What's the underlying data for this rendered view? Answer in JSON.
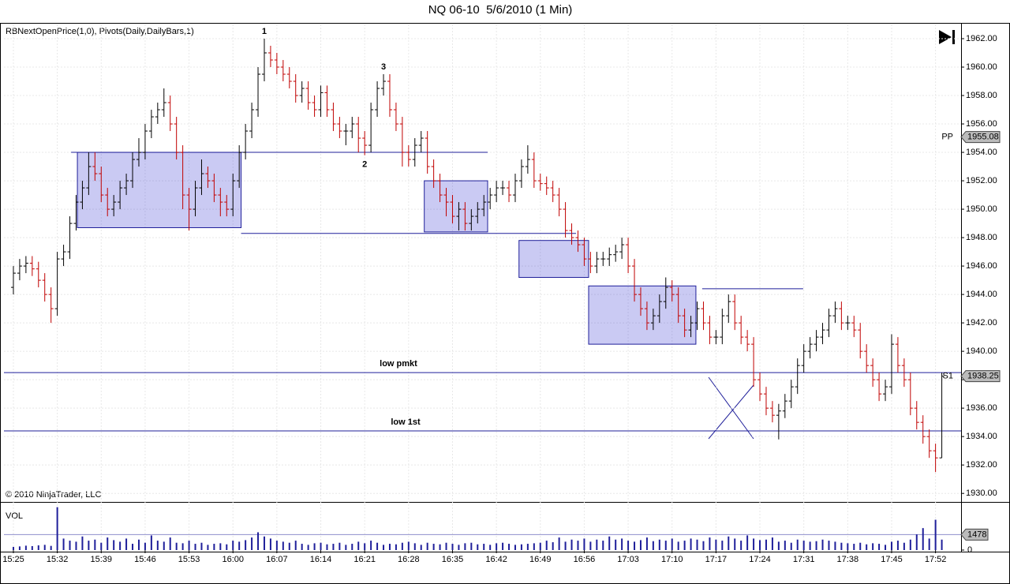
{
  "chart_data": {
    "type": "ohlc",
    "title": "NQ 06-10  5/6/2010 (1 Min)",
    "indicator_label": "RBNextOpenPrice(1,0), Pivots(Daily,DailyBars,1)",
    "copyright": "© 2010 NinjaTrader, LLC",
    "volume_label": "VOL",
    "up_color": "#000000",
    "down_color": "#c00000",
    "volume_color": "#1f1f9a",
    "zone_color": "#2a2ad0",
    "grid": true,
    "categories": [
      "15:25",
      null,
      null,
      null,
      null,
      null,
      null,
      "15:32",
      null,
      null,
      null,
      null,
      null,
      null,
      "15:39",
      null,
      null,
      null,
      null,
      null,
      null,
      "15:46",
      null,
      null,
      null,
      null,
      null,
      null,
      "15:53",
      null,
      null,
      null,
      null,
      null,
      null,
      "16:00",
      null,
      null,
      null,
      null,
      null,
      null,
      "16:07",
      null,
      null,
      null,
      null,
      null,
      null,
      "16:14",
      null,
      null,
      null,
      null,
      null,
      null,
      "16:21",
      null,
      null,
      null,
      null,
      null,
      null,
      "16:28",
      null,
      null,
      null,
      null,
      null,
      null,
      "16:35",
      null,
      null,
      null,
      null,
      null,
      null,
      "16:42",
      null,
      null,
      null,
      null,
      null,
      null,
      "16:49",
      null,
      null,
      null,
      null,
      null,
      null,
      "16:56",
      null,
      null,
      null,
      null,
      null,
      null,
      "17:03",
      null,
      null,
      null,
      null,
      null,
      null,
      "17:10",
      null,
      null,
      null,
      null,
      null,
      null,
      "17:17",
      null,
      null,
      null,
      null,
      null,
      null,
      "17:24",
      null,
      null,
      null,
      null,
      null,
      null,
      "17:31",
      null,
      null,
      null,
      null,
      null,
      null,
      "17:38",
      null,
      null,
      null,
      null,
      null,
      null,
      "17:45",
      null,
      null,
      null,
      null,
      null,
      null,
      "17:52",
      null
    ],
    "bars": [
      [
        1944.5,
        1946,
        1944,
        1945.5
      ],
      [
        1945.5,
        1946.5,
        1945,
        1946
      ],
      [
        1946,
        1946.7,
        1945.5,
        1946.2
      ],
      [
        1946.2,
        1946.7,
        1945.3,
        1945.8
      ],
      [
        1945.8,
        1946.3,
        1944.5,
        1945
      ],
      [
        1945,
        1945.5,
        1943.5,
        1944
      ],
      [
        1944,
        1944.5,
        1942,
        1943
      ],
      [
        1943,
        1947,
        1942.5,
        1946.5
      ],
      [
        1946.5,
        1947.5,
        1946,
        1947
      ],
      [
        1947,
        1949.5,
        1946.5,
        1949
      ],
      [
        1949,
        1951,
        1948.5,
        1950.5
      ],
      [
        1950.5,
        1952,
        1950,
        1951.5
      ],
      [
        1951.5,
        1954,
        1951,
        1953
      ],
      [
        1953,
        1954,
        1952,
        1952.5
      ],
      [
        1952.5,
        1953,
        1950.5,
        1951
      ],
      [
        1951,
        1951.5,
        1949.5,
        1950
      ],
      [
        1950,
        1951,
        1949.5,
        1950.5
      ],
      [
        1950.5,
        1952,
        1950,
        1951.5
      ],
      [
        1951.5,
        1952.5,
        1951,
        1952
      ],
      [
        1952,
        1954,
        1951.5,
        1953.5
      ],
      [
        1953.5,
        1955,
        1953,
        1954
      ],
      [
        1954,
        1956,
        1953.5,
        1955.5
      ],
      [
        1955.5,
        1957,
        1955,
        1956.5
      ],
      [
        1956.5,
        1957.5,
        1956,
        1957
      ],
      [
        1957,
        1958.5,
        1956.5,
        1957.5
      ],
      [
        1957.5,
        1958,
        1955.5,
        1956
      ],
      [
        1956,
        1956.5,
        1953.5,
        1954
      ],
      [
        1954,
        1954.5,
        1950,
        1951
      ],
      [
        1951,
        1951.5,
        1948.5,
        1950
      ],
      [
        1950,
        1952,
        1949.5,
        1951.5
      ],
      [
        1951.5,
        1953.5,
        1951,
        1952.5
      ],
      [
        1952.5,
        1953,
        1951.5,
        1952
      ],
      [
        1952,
        1952.5,
        1950.5,
        1951
      ],
      [
        1951,
        1951.5,
        1949.5,
        1950.5
      ],
      [
        1950.5,
        1951,
        1949.5,
        1950
      ],
      [
        1950,
        1952.5,
        1949.5,
        1952
      ],
      [
        1952,
        1954.5,
        1951.5,
        1954
      ],
      [
        1954,
        1956,
        1953.5,
        1955.5
      ],
      [
        1955.5,
        1957.5,
        1955,
        1957
      ],
      [
        1957,
        1960,
        1956.5,
        1959.5
      ],
      [
        1959.5,
        1962,
        1959,
        1961
      ],
      [
        1961,
        1961.5,
        1960,
        1960.5
      ],
      [
        1960.5,
        1961,
        1959.5,
        1960
      ],
      [
        1960,
        1960.5,
        1959,
        1959.5
      ],
      [
        1959.5,
        1960,
        1958.5,
        1959
      ],
      [
        1959,
        1959.5,
        1957.5,
        1958
      ],
      [
        1958,
        1959,
        1957.5,
        1958.5
      ],
      [
        1958.5,
        1959,
        1957,
        1957.5
      ],
      [
        1957.5,
        1958,
        1956.5,
        1957
      ],
      [
        1957,
        1958.7,
        1956.5,
        1958.2
      ],
      [
        1958.2,
        1958.7,
        1956.5,
        1957
      ],
      [
        1957,
        1957.5,
        1955.5,
        1956
      ],
      [
        1956,
        1956.5,
        1955,
        1955.5
      ],
      [
        1955.5,
        1956,
        1954.5,
        1955.5
      ],
      [
        1955.5,
        1956.5,
        1955,
        1956
      ],
      [
        1956,
        1956.5,
        1954,
        1955
      ],
      [
        1955,
        1955.5,
        1953.8,
        1954.5
      ],
      [
        1954.5,
        1957.5,
        1954,
        1957
      ],
      [
        1957,
        1959,
        1956.5,
        1958.5
      ],
      [
        1958.5,
        1959.5,
        1958,
        1959
      ],
      [
        1959,
        1959.5,
        1956.5,
        1957
      ],
      [
        1957,
        1957.5,
        1955.5,
        1956
      ],
      [
        1956,
        1956.5,
        1953,
        1954
      ],
      [
        1954,
        1954.5,
        1953,
        1953.5
      ],
      [
        1953.5,
        1955,
        1953,
        1954.5
      ],
      [
        1954.5,
        1955.5,
        1954,
        1955
      ],
      [
        1955,
        1955.5,
        1952.5,
        1953
      ],
      [
        1953,
        1953.5,
        1951.5,
        1952
      ],
      [
        1952,
        1952.5,
        1950.5,
        1951
      ],
      [
        1951,
        1951.5,
        1949.5,
        1950.5
      ],
      [
        1950.5,
        1951,
        1949,
        1949.5
      ],
      [
        1949.5,
        1950.5,
        1948.5,
        1950
      ],
      [
        1950,
        1950.5,
        1948.5,
        1949
      ],
      [
        1949,
        1950,
        1948.5,
        1949.5
      ],
      [
        1949.5,
        1950.5,
        1949,
        1950
      ],
      [
        1950,
        1951,
        1949.5,
        1950.5
      ],
      [
        1950.5,
        1951.5,
        1950,
        1951
      ],
      [
        1951,
        1952,
        1950.5,
        1951.5
      ],
      [
        1951.5,
        1952,
        1951,
        1951.5
      ],
      [
        1951.5,
        1952,
        1950.5,
        1951
      ],
      [
        1951,
        1952.5,
        1950.5,
        1952
      ],
      [
        1952,
        1953.5,
        1951.5,
        1953
      ],
      [
        1953,
        1954.5,
        1952.5,
        1953.5
      ],
      [
        1953.5,
        1954,
        1951.5,
        1952
      ],
      [
        1952,
        1952.5,
        1951.3,
        1951.8
      ],
      [
        1951.8,
        1952.3,
        1951,
        1951.5
      ],
      [
        1951.5,
        1952,
        1950.5,
        1951
      ],
      [
        1951,
        1951.5,
        1949.5,
        1950
      ],
      [
        1950,
        1950.5,
        1948,
        1948.5
      ],
      [
        1948.5,
        1949,
        1947.5,
        1948
      ],
      [
        1948,
        1948.5,
        1947,
        1947.5
      ],
      [
        1947.5,
        1948,
        1946,
        1946.5
      ],
      [
        1946.5,
        1947,
        1945.5,
        1946
      ],
      [
        1946,
        1947,
        1945.5,
        1946.5
      ],
      [
        1946.5,
        1947,
        1946,
        1946.5
      ],
      [
        1946.5,
        1947.3,
        1946,
        1946.8
      ],
      [
        1946.8,
        1947.5,
        1946.3,
        1947
      ],
      [
        1947,
        1948,
        1946.5,
        1947.5
      ],
      [
        1947.5,
        1948,
        1945.5,
        1946
      ],
      [
        1946,
        1946.5,
        1943.5,
        1944
      ],
      [
        1944,
        1944.5,
        1942.5,
        1943
      ],
      [
        1943,
        1943.5,
        1941.5,
        1942
      ],
      [
        1942,
        1943,
        1941.5,
        1942.5
      ],
      [
        1942.5,
        1944,
        1942,
        1943.5
      ],
      [
        1943.5,
        1945.2,
        1943,
        1944.5
      ],
      [
        1944.5,
        1945,
        1943.5,
        1944
      ],
      [
        1944,
        1944.5,
        1942,
        1942.5
      ],
      [
        1942.5,
        1943,
        1941,
        1941.5
      ],
      [
        1941.5,
        1942.5,
        1941,
        1942
      ],
      [
        1942,
        1943.5,
        1941.5,
        1943
      ],
      [
        1943,
        1943.5,
        1941.5,
        1942
      ],
      [
        1942,
        1942.5,
        1940.5,
        1941
      ],
      [
        1941,
        1941.5,
        1940.5,
        1941
      ],
      [
        1941,
        1943,
        1940.5,
        1942.5
      ],
      [
        1942.5,
        1944,
        1942,
        1943.5
      ],
      [
        1943.5,
        1944,
        1941.5,
        1942
      ],
      [
        1942,
        1942.5,
        1940.5,
        1941
      ],
      [
        1941,
        1941.5,
        1940,
        1940.5
      ],
      [
        1940.5,
        1941,
        1937.5,
        1938
      ],
      [
        1938,
        1938.5,
        1936.5,
        1937
      ],
      [
        1937,
        1937.5,
        1935.5,
        1936
      ],
      [
        1936,
        1936.5,
        1935,
        1935.5
      ],
      [
        1935.5,
        1936.3,
        1933.8,
        1935.8
      ],
      [
        1935.8,
        1937,
        1935.3,
        1936.5
      ],
      [
        1936.5,
        1938,
        1936,
        1937.5
      ],
      [
        1937.5,
        1939.5,
        1937,
        1939
      ],
      [
        1939,
        1940.5,
        1938.5,
        1940
      ],
      [
        1940,
        1941,
        1939.5,
        1940.5
      ],
      [
        1940.5,
        1941.5,
        1940,
        1941
      ],
      [
        1941,
        1942,
        1940.5,
        1941.5
      ],
      [
        1941.5,
        1943,
        1941,
        1942.5
      ],
      [
        1942.5,
        1943.5,
        1942,
        1943
      ],
      [
        1943,
        1943.5,
        1941.5,
        1942
      ],
      [
        1942,
        1942.5,
        1941.5,
        1942
      ],
      [
        1942,
        1942.5,
        1941,
        1941.5
      ],
      [
        1941.5,
        1942,
        1939.5,
        1940
      ],
      [
        1940,
        1940.5,
        1938.5,
        1939
      ],
      [
        1939,
        1939.5,
        1937.5,
        1938
      ],
      [
        1938,
        1938.5,
        1936.5,
        1937
      ],
      [
        1937,
        1938,
        1936.5,
        1937.5
      ],
      [
        1937.5,
        1941.2,
        1937,
        1940.5
      ],
      [
        1940.5,
        1941,
        1938.5,
        1939
      ],
      [
        1939,
        1939.5,
        1937.5,
        1938
      ],
      [
        1938,
        1938.5,
        1935.5,
        1936
      ],
      [
        1936,
        1936.5,
        1934.5,
        1935
      ],
      [
        1935,
        1935.5,
        1933.5,
        1934
      ],
      [
        1934,
        1934.5,
        1932.5,
        1933
      ],
      [
        1933,
        1933.5,
        1931.5,
        1932.5
      ],
      [
        1932.5,
        1938.5,
        1932.5,
        1938.25
      ]
    ],
    "volume": [
      300,
      350,
      420,
      380,
      450,
      500,
      400,
      4100,
      1100,
      900,
      800,
      1300,
      900,
      1000,
      700,
      1200,
      950,
      800,
      1100,
      600,
      1000,
      700,
      1400,
      900,
      800,
      1200,
      700,
      650,
      900,
      600,
      700,
      500,
      600,
      650,
      550,
      900,
      800,
      950,
      1200,
      1700,
      1300,
      1100,
      900,
      800,
      700,
      900,
      600,
      500,
      650,
      700,
      550,
      600,
      700,
      500,
      600,
      800,
      650,
      900,
      700,
      500,
      600,
      550,
      700,
      800,
      650,
      500,
      700,
      600,
      550,
      700,
      600,
      500,
      650,
      700,
      550,
      600,
      500,
      650,
      700,
      600,
      500,
      550,
      600,
      650,
      700,
      900,
      750,
      1200,
      800,
      1000,
      900,
      1100,
      800,
      1000,
      900,
      1300,
      1000,
      1100,
      900,
      800,
      950,
      1200,
      850,
      1000,
      900,
      1100,
      800,
      900,
      1100,
      1000,
      850,
      1200,
      1000,
      900,
      1300,
      1100,
      900,
      1400,
      1100,
      950,
      1000,
      1200,
      800,
      900,
      700,
      1000,
      900,
      800,
      850,
      1000,
      900,
      800,
      700,
      650,
      600,
      700,
      550,
      650,
      600,
      500,
      800,
      900,
      700,
      1000,
      1500,
      2100,
      1100,
      2900,
      1000
    ],
    "ylim": [
      1929.4,
      1963
    ],
    "yticks": [
      {
        "value": 1930,
        "label": "1930.00"
      },
      {
        "value": 1932,
        "label": "1932.00"
      },
      {
        "value": 1934,
        "label": "1934.00"
      },
      {
        "value": 1936,
        "label": "1936.00"
      },
      {
        "value": 1938,
        "label": "1938.00"
      },
      {
        "value": 1940,
        "label": "1940.00"
      },
      {
        "value": 1942,
        "label": "1942.00"
      },
      {
        "value": 1944,
        "label": "1944.00"
      },
      {
        "value": 1946,
        "label": "1946.00"
      },
      {
        "value": 1948,
        "label": "1948.00"
      },
      {
        "value": 1950,
        "label": "1950.00"
      },
      {
        "value": 1952,
        "label": "1952.00"
      },
      {
        "value": 1954,
        "label": "1954.00"
      },
      {
        "value": 1956,
        "label": "1956.00"
      },
      {
        "value": 1958,
        "label": "1958.00"
      },
      {
        "value": 1960,
        "label": "1960.00"
      },
      {
        "value": 1962,
        "label": "1962.00"
      }
    ],
    "volume_ylim": [
      0,
      4300
    ],
    "volume_yticks": [
      0,
      1478
    ],
    "levels": [
      {
        "label": "low pmkt",
        "value": 1938.5
      },
      {
        "label": "low 1st",
        "value": 1934.4
      }
    ],
    "pivots": [
      {
        "name": "PP",
        "value": 1955.08
      },
      {
        "name": "S1",
        "value": 1938.25
      }
    ],
    "segments": [
      1954,
      1948.3,
      1944.4
    ],
    "zones": [
      {
        "low": 1948.7,
        "high": 1954
      },
      {
        "low": 1948.4,
        "high": 1952
      },
      {
        "low": 1945.2,
        "high": 1947.8
      },
      {
        "low": 1940.5,
        "high": 1944.6
      }
    ],
    "wave_labels": [
      "1",
      "2",
      "3"
    ]
  }
}
